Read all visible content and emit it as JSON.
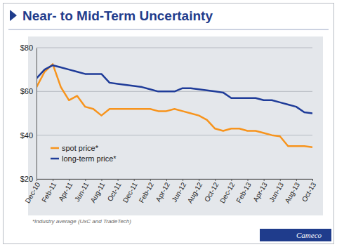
{
  "chart_data": {
    "type": "line",
    "title": "Near- to Mid-Term Uncertainty",
    "categories": [
      "Dec-10",
      null,
      "Feb-11",
      null,
      "Apr-11",
      null,
      "Jun-11",
      null,
      "Aug-11",
      null,
      "Oct-11",
      null,
      "Dec-11",
      null,
      "Feb-12",
      null,
      "Apr-12",
      null,
      "Jun-12",
      null,
      "Aug-12",
      null,
      "Oct-12",
      null,
      "Dec-12",
      null,
      "Feb-13",
      null,
      "Apr-13",
      null,
      "Jun-13",
      null,
      "Aug-13",
      null,
      "Oct-13"
    ],
    "series": [
      {
        "name": "spot price*",
        "color": "#f7941d",
        "values": [
          62,
          69,
          72.5,
          62,
          56,
          58,
          53,
          52,
          49,
          52,
          52,
          52,
          52,
          52,
          52,
          51,
          51,
          52,
          51,
          50,
          49,
          47,
          43,
          42,
          43,
          43,
          42,
          42,
          41,
          40,
          39.5,
          35,
          35,
          35,
          34.5
        ]
      },
      {
        "name": "long-term price*",
        "color": "#1f3c99",
        "values": [
          66,
          70,
          72,
          71,
          70,
          69,
          68,
          68,
          68,
          64,
          63.5,
          63,
          62.5,
          62,
          61,
          60,
          60,
          60,
          61.5,
          61.5,
          61,
          60.5,
          60,
          59.5,
          57,
          57,
          57,
          57,
          56,
          56,
          55,
          54,
          53,
          50.5,
          50
        ]
      }
    ],
    "ylim": [
      20,
      80
    ],
    "yticks": [
      {
        "value": 20,
        "label": "$20"
      },
      {
        "value": 40,
        "label": "$40"
      },
      {
        "value": 60,
        "label": "$60"
      },
      {
        "value": 80,
        "label": "$80"
      }
    ],
    "grid": true,
    "legend": "lower left",
    "annotations": [
      "*Industry average (UxC and TradeTech)",
      "Cameco"
    ]
  }
}
